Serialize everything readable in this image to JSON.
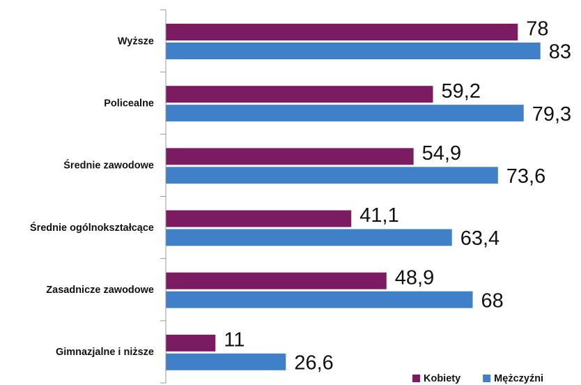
{
  "chart_data": {
    "type": "hbar",
    "categories": [
      "Wyższe",
      "Policealne",
      "Średnie zawodowe",
      "Średnie ogólnokształcące",
      "Zasadnicze zawodowe",
      "Gimnazjalne i niższe"
    ],
    "series": [
      {
        "name": "Kobiety",
        "color": "#7b1c62",
        "values": [
          78,
          59.2,
          54.9,
          41.1,
          48.9,
          11
        ],
        "value_labels": [
          "78",
          "59,2",
          "54,9",
          "41,1",
          "48,9",
          "11"
        ]
      },
      {
        "name": "Mężczyźni",
        "color": "#3f80c9",
        "values": [
          83,
          79.3,
          73.6,
          63.4,
          68,
          26.6
        ],
        "value_labels": [
          "83",
          "79,3",
          "73,6",
          "63,4",
          "68",
          "26,6"
        ]
      }
    ],
    "xlim": [
      0,
      92
    ]
  }
}
